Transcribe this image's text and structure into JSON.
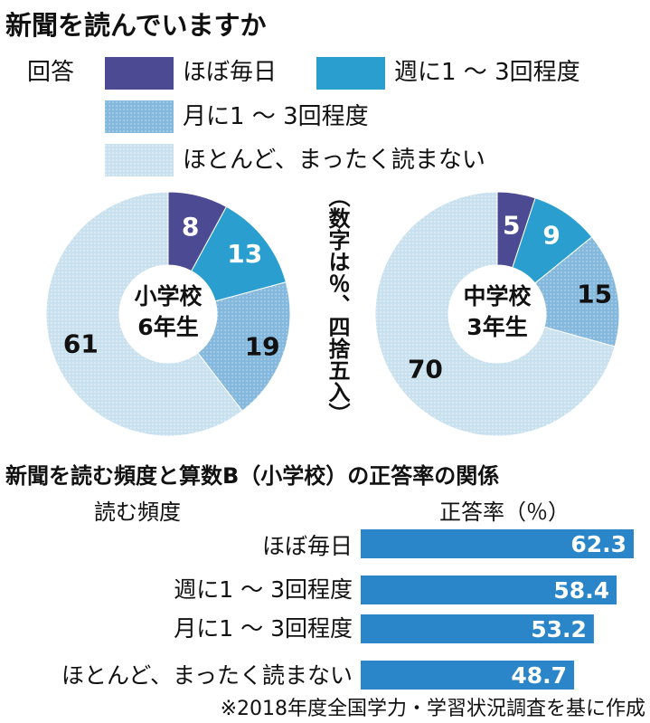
{
  "colors": {
    "daily": "#4b4a93",
    "weekly": "#2a9fcf",
    "monthly": "#84b8dc",
    "never": "#c9e1ef",
    "bar": "#2a86c8"
  },
  "title": "新聞を読んでいますか",
  "legend": {
    "label": "回答",
    "items": [
      "ほぼ毎日",
      "週に1 ～ 3回程度",
      "月に1 ～ 3回程度",
      "ほとんど、まったく読まない"
    ]
  },
  "note_vertical": "（数字は％、四捨五入）",
  "bar_title": "新聞を読む頻度と算数B（小学校）の正答率の関係",
  "bar_col_left": "読む頻度",
  "bar_col_right": "正答率（％）",
  "footnote": "※2018年度全国学力・学習状況調査を基に作成",
  "chart_data": [
    {
      "type": "pie",
      "title": "小学校6年生",
      "center_lines": [
        "小学校",
        "6年生"
      ],
      "categories": [
        "ほぼ毎日",
        "週に1 ～ 3回程度",
        "月に1 ～ 3回程度",
        "ほとんど、まったく読まない"
      ],
      "values": [
        8,
        13,
        19,
        61
      ],
      "labels": [
        "8",
        "13",
        "19",
        "61"
      ]
    },
    {
      "type": "pie",
      "title": "中学校3年生",
      "center_lines": [
        "中学校",
        "3年生"
      ],
      "categories": [
        "ほぼ毎日",
        "週に1 ～ 3回程度",
        "月に1 ～ 3回程度",
        "ほとんど、まったく読まない"
      ],
      "values": [
        5,
        9,
        15,
        70
      ],
      "labels": [
        "5",
        "9",
        "15",
        "70"
      ]
    },
    {
      "type": "bar",
      "title": "新聞を読む頻度と算数B（小学校）の正答率の関係",
      "categories": [
        "ほぼ毎日",
        "週に1 ～ 3回程度",
        "月に1 ～ 3回程度",
        "ほとんど、まったく読まない"
      ],
      "values": [
        62.3,
        58.4,
        53.2,
        48.7
      ],
      "labels": [
        "62.3",
        "58.4",
        "53.2",
        "48.7"
      ],
      "xlabel": "読む頻度",
      "ylabel": "正答率（％）",
      "xlim": [
        0,
        62.3
      ]
    }
  ]
}
